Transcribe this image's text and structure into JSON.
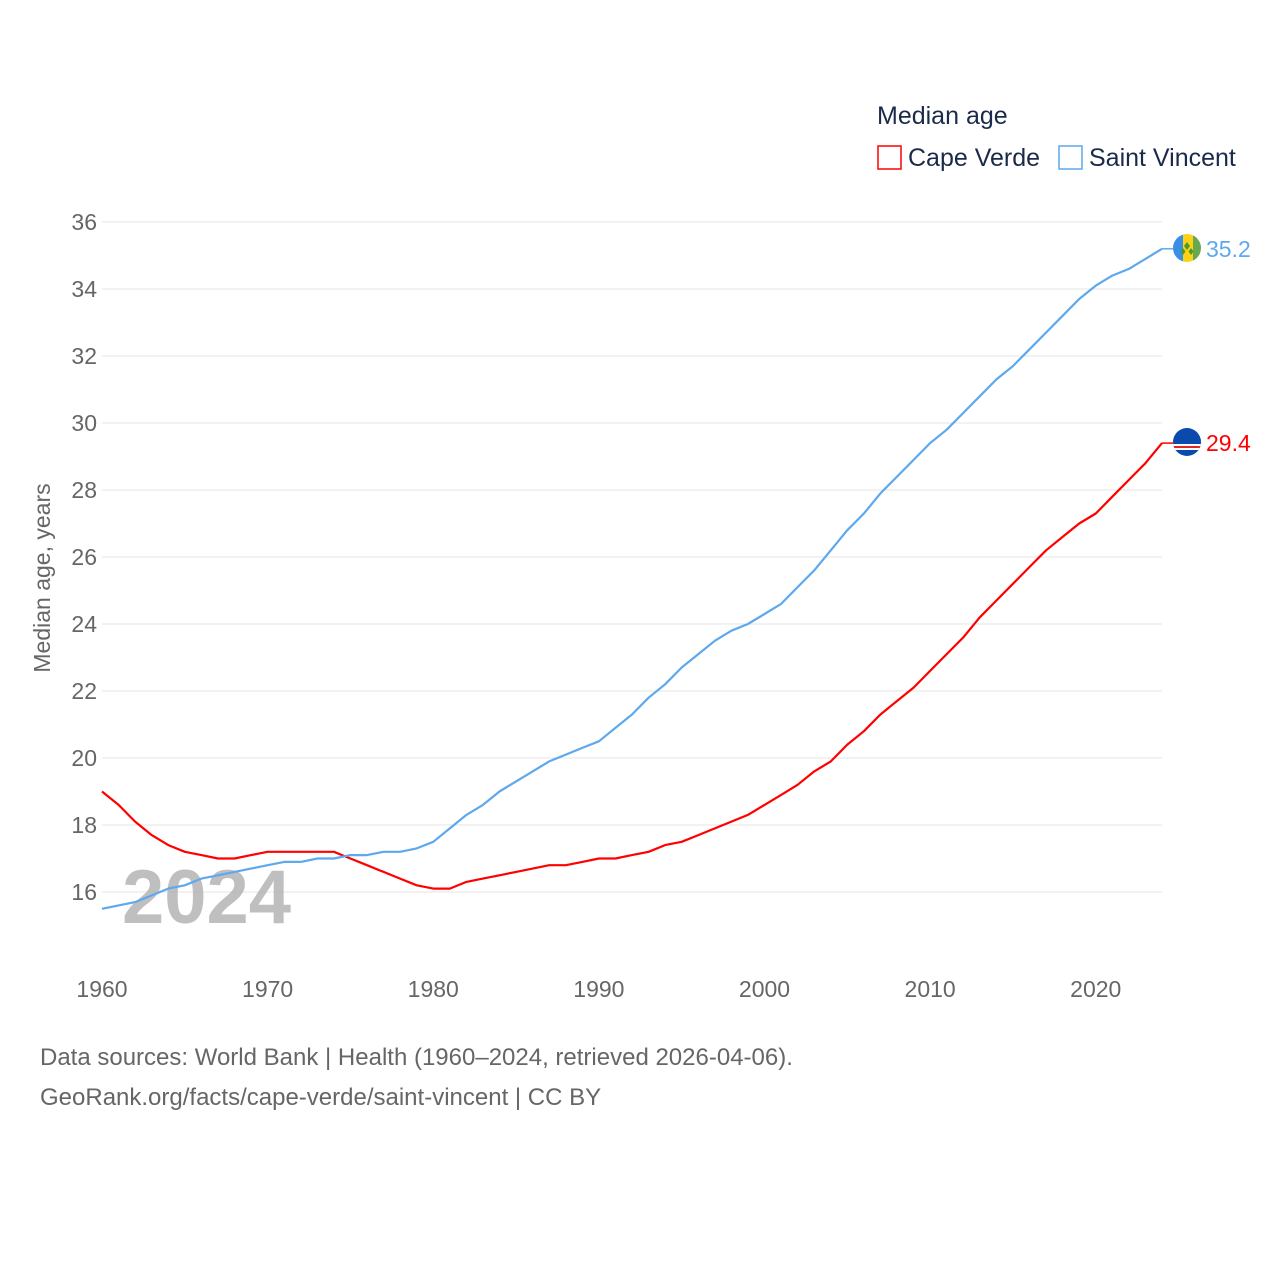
{
  "chart_data": {
    "type": "line",
    "title": "Median age",
    "ylabel": "Median age, years",
    "xlabel": "",
    "ylim": [
      14.5,
      36
    ],
    "xlim": [
      1960,
      2024
    ],
    "yticks": [
      16,
      18,
      20,
      22,
      24,
      26,
      28,
      30,
      32,
      34,
      36
    ],
    "xticks": [
      1960,
      1970,
      1980,
      1990,
      2000,
      2010,
      2020
    ],
    "grid": true,
    "legend_position": "top-right",
    "year_watermark": "2024",
    "x_start": 1960,
    "series": [
      {
        "name": "Cape Verde",
        "color": "#ff0000",
        "end_label": "29.4",
        "flag": "cape-verde-flag",
        "values": [
          19.0,
          18.6,
          18.1,
          17.7,
          17.4,
          17.2,
          17.1,
          17.0,
          17.0,
          17.1,
          17.2,
          17.2,
          17.2,
          17.2,
          17.2,
          17.0,
          16.8,
          16.6,
          16.4,
          16.2,
          16.1,
          16.1,
          16.3,
          16.4,
          16.5,
          16.6,
          16.7,
          16.8,
          16.8,
          16.9,
          17.0,
          17.0,
          17.1,
          17.2,
          17.4,
          17.5,
          17.7,
          17.9,
          18.1,
          18.3,
          18.6,
          18.9,
          19.2,
          19.6,
          19.9,
          20.4,
          20.8,
          21.3,
          21.7,
          22.1,
          22.6,
          23.1,
          23.6,
          24.2,
          24.7,
          25.2,
          25.7,
          26.2,
          26.6,
          27.0,
          27.3,
          27.8,
          28.3,
          28.8,
          29.4
        ]
      },
      {
        "name": "Saint Vincent",
        "color": "#5ea8ee",
        "end_label": "35.2",
        "flag": "saint-vincent-flag",
        "values": [
          15.5,
          15.6,
          15.7,
          15.9,
          16.1,
          16.2,
          16.4,
          16.5,
          16.6,
          16.7,
          16.8,
          16.9,
          16.9,
          17.0,
          17.0,
          17.1,
          17.1,
          17.2,
          17.2,
          17.3,
          17.5,
          17.9,
          18.3,
          18.6,
          19.0,
          19.3,
          19.6,
          19.9,
          20.1,
          20.3,
          20.5,
          20.9,
          21.3,
          21.8,
          22.2,
          22.7,
          23.1,
          23.5,
          23.8,
          24.0,
          24.3,
          24.6,
          25.1,
          25.6,
          26.2,
          26.8,
          27.3,
          27.9,
          28.4,
          28.9,
          29.4,
          29.8,
          30.3,
          30.8,
          31.3,
          31.7,
          32.2,
          32.7,
          33.2,
          33.7,
          34.1,
          34.4,
          34.6,
          34.9,
          35.2
        ]
      }
    ]
  },
  "footer": {
    "source": "Data sources: World Bank | Health (1960–2024, retrieved 2026-04-06).",
    "credit": "GeoRank.org/facts/cape-verde/saint-vincent | CC BY"
  }
}
